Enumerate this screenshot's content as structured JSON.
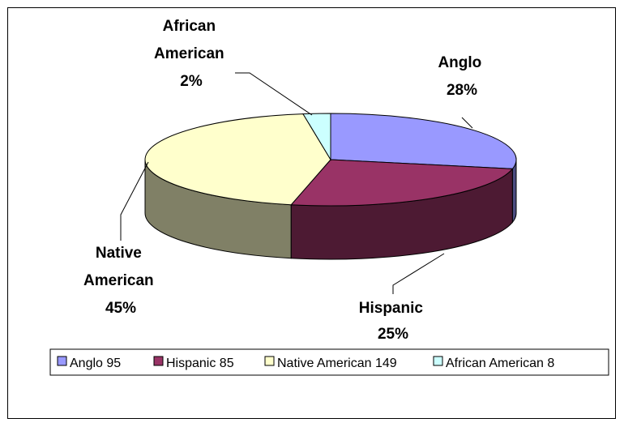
{
  "chart_data": {
    "type": "pie",
    "style": "3d",
    "categories": [
      "Anglo",
      "Hispanic",
      "Native American",
      "African American"
    ],
    "values": [
      95,
      85,
      149,
      8
    ],
    "percent_labels": [
      "28%",
      "25%",
      "45%",
      "2%"
    ],
    "legend": {
      "placement": "bottom",
      "entries": [
        "Anglo 95",
        "Hispanic 85",
        "Native American  149",
        "African American 8"
      ]
    },
    "colors": [
      "#9999ff",
      "#993366",
      "#ffffcc",
      "#ccffff"
    ],
    "side_colors": [
      "#4c4c80",
      "#4d1a33",
      "#808066",
      "#668080"
    ]
  },
  "labels": {
    "anglo": [
      "Anglo",
      "28%"
    ],
    "hispanic": [
      "Hispanic",
      "25%"
    ],
    "native": [
      "Native",
      "American",
      "45%"
    ],
    "african": [
      "African",
      "American",
      "2%"
    ]
  }
}
